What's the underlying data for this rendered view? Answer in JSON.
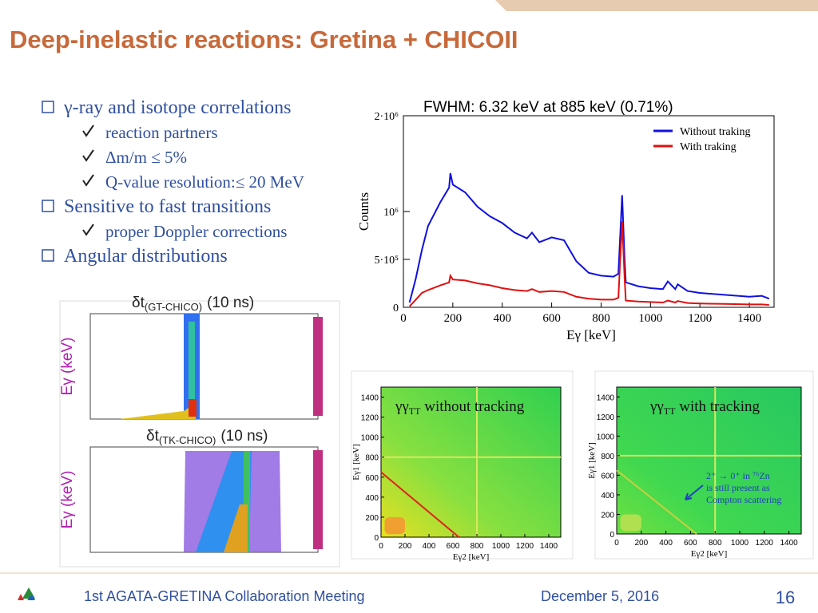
{
  "header": {
    "title": "Deep-inelastic reactions: Gretina + CHICOII"
  },
  "bullets": [
    {
      "text": "γ-ray and isotope correlations",
      "items": [
        "reaction partners",
        "Δm/m ≤ 5%",
        "Q-value resolution:≤ 20 MeV"
      ]
    },
    {
      "text": "Sensitive to fast transitions",
      "items": [
        "proper Doppler corrections"
      ]
    },
    {
      "text": "Angular distributions"
    }
  ],
  "timing_plots": [
    {
      "symbol": "δt",
      "subscript": "(GT-CHICO)",
      "unit": "(10 ns)",
      "ylabel": "Eγ (keV)"
    },
    {
      "symbol": "δt",
      "subscript": "(TK-CHICO)",
      "unit": "(10 ns)",
      "ylabel": "Eγ (keV)"
    }
  ],
  "chart_data": {
    "type": "line",
    "annotation": "FWHM: 6.32 keV at 885 keV (0.71%)",
    "xlabel": "Eγ [keV]",
    "ylabel": "Counts",
    "x": [
      25,
      50,
      75,
      100,
      150,
      185,
      190,
      200,
      250,
      300,
      350,
      400,
      450,
      500,
      520,
      550,
      600,
      650,
      700,
      750,
      800,
      850,
      870,
      885,
      895,
      900,
      950,
      1000,
      1050,
      1070,
      1100,
      1110,
      1150,
      1200,
      1300,
      1400,
      1450,
      1480
    ],
    "series": [
      {
        "name": "Without traking",
        "color": "#1010e0",
        "values": [
          50000,
          300000,
          600000,
          850000,
          1100000,
          1250000,
          1400000,
          1280000,
          1200000,
          1050000,
          950000,
          880000,
          780000,
          720000,
          780000,
          680000,
          730000,
          700000,
          480000,
          360000,
          330000,
          320000,
          350000,
          1170000,
          500000,
          260000,
          220000,
          200000,
          190000,
          270000,
          190000,
          240000,
          170000,
          150000,
          130000,
          110000,
          120000,
          90000
        ]
      },
      {
        "name": "With traking",
        "color": "#e01010",
        "values": [
          10000,
          80000,
          150000,
          180000,
          230000,
          260000,
          330000,
          290000,
          280000,
          250000,
          230000,
          200000,
          180000,
          170000,
          190000,
          160000,
          170000,
          160000,
          110000,
          90000,
          80000,
          80000,
          100000,
          900000,
          300000,
          70000,
          60000,
          55000,
          50000,
          70000,
          50000,
          65000,
          45000,
          40000,
          35000,
          30000,
          30000,
          25000
        ]
      }
    ],
    "xlim": [
      0,
      1500
    ],
    "ylim": [
      0,
      2000000
    ],
    "xticks": [
      0,
      200,
      400,
      600,
      800,
      1000,
      1200,
      1400
    ],
    "yticks": [
      0,
      {
        "value": 500000,
        "label": "5·10⁵"
      },
      {
        "value": 1000000,
        "label": "10⁶"
      },
      {
        "value": 2000000,
        "label": "2·10⁶"
      }
    ],
    "legend": "upper right"
  },
  "matrices": [
    {
      "title": "γγ",
      "title_sub": "TT",
      "title_rest": " without tracking",
      "ylabel": "Eγ1 [keV]",
      "xlabel": "Eγ2 [keV]",
      "xlim": [
        0,
        1500
      ],
      "ylim": [
        0,
        1500
      ],
      "xticks": [
        0,
        200,
        400,
        600,
        800,
        1000,
        1200,
        1400
      ],
      "yticks": [
        0,
        200,
        400,
        600,
        800,
        1000,
        1200,
        1400
      ]
    },
    {
      "title": "γγ",
      "title_sub": "TT",
      "title_rest": " with tracking",
      "ylabel": "Eγ1 [keV]",
      "xlabel": "Eγ2 [keV]",
      "xlim": [
        0,
        1500
      ],
      "ylim": [
        0,
        1500
      ],
      "xticks": [
        0,
        200,
        400,
        600,
        800,
        1000,
        1200,
        1400
      ],
      "yticks": [
        0,
        200,
        400,
        600,
        800,
        1000,
        1200,
        1400
      ],
      "note": [
        "2⁺ → 0⁺ in ⁷⁶Zn",
        "is still present as",
        "Compton scattering"
      ]
    }
  ],
  "footer": {
    "meeting": "1st AGATA-GRETINA Collaboration Meeting",
    "date": "December 5, 2016",
    "page": "16"
  }
}
